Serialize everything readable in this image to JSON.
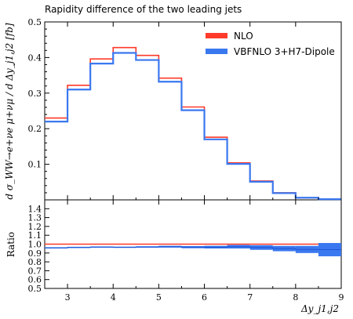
{
  "chart_data": {
    "type": "histogram",
    "title": "Rapidity difference of the two leading jets",
    "xlabel": "Δy_j1,j2",
    "ylabel": "d σ_WW→e+νe μ+νμ / d Δy_j1,j2 [fb]",
    "xlim": [
      2.5,
      9
    ],
    "ylim": [
      0,
      0.5
    ],
    "x_ticks": [
      3,
      4,
      5,
      6,
      7,
      8,
      9
    ],
    "y_ticks": [
      0.1,
      0.2,
      0.3,
      0.4,
      0.5
    ],
    "bin_edges": [
      2.5,
      3.0,
      3.5,
      4.0,
      4.5,
      5.0,
      5.5,
      6.0,
      6.5,
      7.0,
      7.5,
      8.0,
      8.5,
      9.0
    ],
    "series": [
      {
        "name": "NLO",
        "color": "#ff3a2a",
        "values": [
          0.23,
          0.322,
          0.396,
          0.428,
          0.406,
          0.342,
          0.261,
          0.176,
          0.104,
          0.053,
          0.02,
          0.006,
          0.002
        ]
      },
      {
        "name": "VBFNLO 3+H7-Dipole",
        "color": "#3a78f0",
        "values": [
          0.22,
          0.31,
          0.383,
          0.413,
          0.393,
          0.332,
          0.252,
          0.17,
          0.101,
          0.051,
          0.019,
          0.006,
          0.002
        ]
      }
    ],
    "legend_position": "top-right",
    "ratio_panel": {
      "ylabel": "Ratio",
      "ylim": [
        0.5,
        1.5
      ],
      "y_ticks": [
        "0.5",
        "0.6",
        "0.7",
        "0.8",
        "0.9",
        "1.0",
        "1.1",
        "1.2",
        "1.3",
        "1.4"
      ],
      "reference": 1.0,
      "ratio_values": [
        0.958,
        0.963,
        0.967,
        0.965,
        0.968,
        0.971,
        0.966,
        0.966,
        0.971,
        0.962,
        0.95,
        0.94,
        0.938
      ],
      "band_half_widths": [
        0.007,
        0.007,
        0.007,
        0.007,
        0.008,
        0.01,
        0.012,
        0.015,
        0.02,
        0.026,
        0.03,
        0.04,
        0.075
      ]
    }
  }
}
